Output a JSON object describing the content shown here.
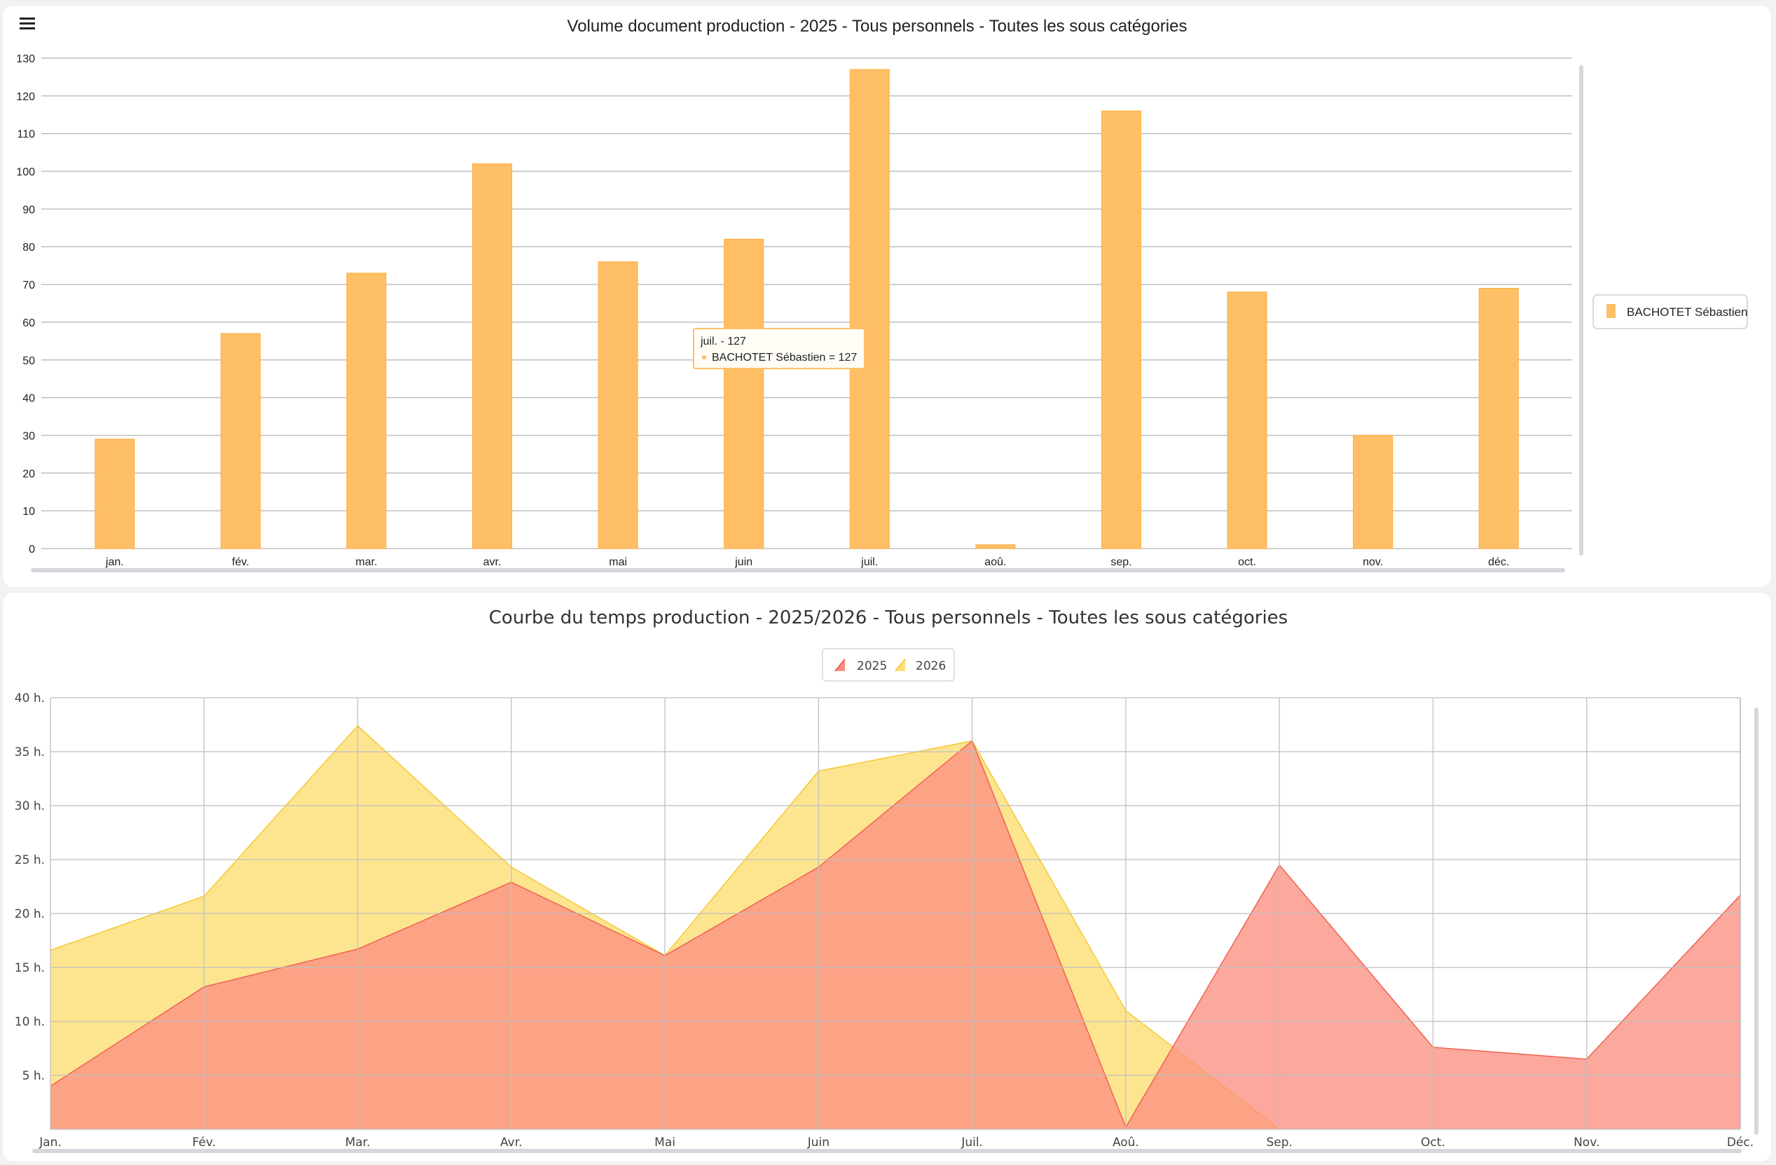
{
  "colors": {
    "bar": "#FFBF66",
    "bar_stroke": "#ffad3d",
    "grid": "#bfbfbf",
    "series_2025": "#f26150",
    "series_2025_fill": "#fb8f82",
    "series_2026": "#f5c931",
    "series_2026_fill": "#fde07c",
    "scrollbar": "#d4d7db"
  },
  "top_chart": {
    "title": "Volume document production - 2025 - Tous personnels - Toutes les sous catégories",
    "legend_label": "BACHOTET Sébastien",
    "tooltip": {
      "header": "juil. - 127",
      "line": "BACHOTET Sébastien = 127"
    }
  },
  "bottom_chart": {
    "title": "Courbe du temps production - 2025/2026 - Tous personnels - Toutes les sous catégories",
    "legend": [
      "2025",
      "2026"
    ]
  },
  "chart_data": [
    {
      "type": "bar",
      "title": "Volume document production - 2025 - Tous personnels - Toutes les sous catégories",
      "categories": [
        "jan.",
        "fév.",
        "mar.",
        "avr.",
        "mai",
        "juin",
        "juil.",
        "aoû.",
        "sep.",
        "oct.",
        "nov.",
        "déc."
      ],
      "series": [
        {
          "name": "BACHOTET Sébastien",
          "values": [
            29,
            57,
            73,
            102,
            76,
            82,
            127,
            1,
            116,
            68,
            30,
            69
          ]
        }
      ],
      "ylim": [
        0,
        130
      ],
      "yticks": [
        "0",
        "10",
        "20",
        "30",
        "40",
        "50",
        "60",
        "70",
        "80",
        "90",
        "100",
        "110",
        "120",
        "130"
      ],
      "grid": true,
      "legend_position": "right"
    },
    {
      "type": "area",
      "title": "Courbe du temps production - 2025/2026 - Tous personnels - Toutes les sous catégories",
      "categories": [
        "Jan.",
        "Fév.",
        "Mar.",
        "Avr.",
        "Mai",
        "Juin",
        "Juil.",
        "Aoû.",
        "Sep.",
        "Oct.",
        "Nov.",
        "Déc."
      ],
      "series": [
        {
          "name": "2025",
          "values": [
            4,
            13.2,
            16.7,
            22.9,
            16.1,
            24.3,
            36,
            0.2,
            24.5,
            7.6,
            6.5,
            21.7
          ]
        },
        {
          "name": "2026",
          "values": [
            16.6,
            21.6,
            37.4,
            24.3,
            16.1,
            33.2,
            36,
            11,
            0,
            null,
            null,
            null
          ]
        }
      ],
      "ylim": [
        0,
        40
      ],
      "yticks": [
        "",
        "5 h.",
        "10 h.",
        "15 h.",
        "20 h.",
        "25 h.",
        "30 h.",
        "35 h.",
        "40 h."
      ],
      "grid": true,
      "legend_position": "top"
    }
  ]
}
